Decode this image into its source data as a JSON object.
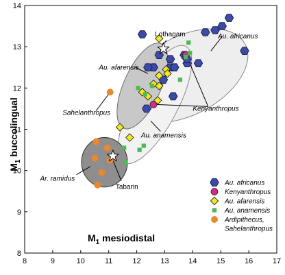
{
  "chart_data": {
    "type": "scatter",
    "xlabel": {
      "main": "M",
      "sub": "1",
      "rest": " mesiodistal"
    },
    "ylabel": {
      "main": "M",
      "sub": "1",
      "rest": " buccolingual"
    },
    "xlim": [
      8,
      17
    ],
    "ylim": [
      8,
      14
    ],
    "xticks": [
      "8",
      "9",
      "10",
      "11",
      "12",
      "13",
      "14",
      "15",
      "16",
      "17"
    ],
    "yticks": [
      "8",
      "9",
      "10",
      "11",
      "12",
      "13",
      "14"
    ],
    "grid": false,
    "legend_position": "bottom-right",
    "series": [
      {
        "name": "Au. africanus",
        "marker": "hexagon",
        "color": "#3b4ba8",
        "points": [
          [
            12.2,
            13.3
          ],
          [
            12.6,
            12.5
          ],
          [
            12.4,
            12.5
          ],
          [
            12.35,
            11.5
          ],
          [
            12.95,
            12.2
          ],
          [
            13.2,
            12.7
          ],
          [
            13.2,
            12.5
          ],
          [
            13.35,
            12.5
          ],
          [
            13.8,
            12.6
          ],
          [
            13.8,
            12.7
          ],
          [
            13.3,
            11.8
          ],
          [
            14.2,
            12.6
          ],
          [
            14.45,
            13.35
          ],
          [
            14.8,
            13.4
          ],
          [
            15.05,
            13.5
          ],
          [
            15.3,
            13.7
          ],
          [
            15.85,
            12.9
          ],
          [
            12.8,
            12.8
          ],
          [
            13.7,
            12.8
          ]
        ]
      },
      {
        "name": "Kenyanthropus",
        "marker": "circle",
        "color": "#d62b8c",
        "points": [
          [
            12.6,
            11.6
          ],
          [
            13.75,
            12.8
          ]
        ]
      },
      {
        "name": "Au. afarensis",
        "marker": "diamond",
        "color": "#f2ea1c",
        "points": [
          [
            12.8,
            13.2
          ],
          [
            12.8,
            12.3
          ],
          [
            13.05,
            12.45
          ],
          [
            13.1,
            12.35
          ],
          [
            12.8,
            12.05
          ],
          [
            12.75,
            11.7
          ],
          [
            12.6,
            12.1
          ],
          [
            12.4,
            11.8
          ],
          [
            12.2,
            11.9
          ],
          [
            11.4,
            11.05
          ],
          [
            11.75,
            10.8
          ]
        ]
      },
      {
        "name": "Au. anamensis",
        "marker": "square",
        "color": "#4dbb55",
        "points": [
          [
            12.05,
            12.0
          ],
          [
            12.3,
            11.85
          ],
          [
            12.55,
            12.05
          ],
          [
            13.55,
            12.2
          ],
          [
            13.85,
            13.1
          ],
          [
            13.9,
            12.85
          ],
          [
            13.75,
            12.75
          ],
          [
            12.1,
            10.5
          ],
          [
            11.55,
            10.55
          ],
          [
            11.6,
            10.2
          ],
          [
            12.25,
            10.6
          ]
        ]
      },
      {
        "name": "Ardipithecus, Sahelanthropus",
        "name_lines": [
          "Ardipithecus,",
          "Sahelanthropus"
        ],
        "marker": "circle",
        "color": "#e8892f",
        "points": [
          [
            11.05,
            11.9
          ],
          [
            10.55,
            10.7
          ],
          [
            10.5,
            10.3
          ],
          [
            10.75,
            9.95
          ],
          [
            11.05,
            10.25
          ],
          [
            10.95,
            10.55
          ],
          [
            10.6,
            9.65
          ]
        ]
      }
    ],
    "ellipses": [
      {
        "group": "Au. africanus",
        "cx": 13.75,
        "cy": 12.3,
        "rx": 2.4,
        "ry": 0.95,
        "angle": 28,
        "fill": "#eeeeee",
        "stroke": "#888888"
      },
      {
        "group": "Au. anamensis",
        "cx": 12.65,
        "cy": 11.6,
        "rx": 2.35,
        "ry": 0.55,
        "angle": 62,
        "fill": "#f2f2f2",
        "stroke": "#8a8a8a"
      },
      {
        "group": "Au. afarensis",
        "cx": 12.2,
        "cy": 12.05,
        "rx": 1.65,
        "ry": 0.45,
        "angle": 66,
        "fill": "#c8c8c8",
        "stroke": "#6a6a6a"
      },
      {
        "group": "Ar. ramidus",
        "cx": 10.85,
        "cy": 10.2,
        "rx": 0.82,
        "ry": 0.6,
        "angle": 0,
        "fill": "#8e8e8e",
        "stroke": "#333333"
      }
    ],
    "stars": [
      {
        "name": "Lothagam",
        "x": 12.95,
        "y": 12.95
      },
      {
        "name": "Tabarin",
        "x": 11.15,
        "y": 10.35
      }
    ],
    "annotations": [
      {
        "text": "Au. africanus",
        "italic": true,
        "x": 14.9,
        "y": 13.2,
        "lx": 15.05,
        "ly": 13.25,
        "px": 14.65,
        "py": 12.9
      },
      {
        "text": "Au. afarensis",
        "italic": true,
        "x": 10.65,
        "y": 12.45,
        "lx": 11.95,
        "ly": 12.5,
        "px": 12.4,
        "py": 12.35
      },
      {
        "text": "Kenyanthropus",
        "italic": true,
        "x": 14.0,
        "y": 11.45,
        "lx": 14.55,
        "ly": 11.55,
        "px": 12.7,
        "py": 11.6
      },
      {
        "text": "Kenyanthropus",
        "italic": true,
        "hidden_label": true,
        "lx": 14.55,
        "ly": 11.55,
        "px": 13.8,
        "py": 12.75
      },
      {
        "text": "Sahelanthropus",
        "italic": true,
        "x": 9.35,
        "y": 11.35,
        "lx": 10.55,
        "ly": 11.45,
        "px": 11.0,
        "py": 11.85
      },
      {
        "text": "Au. anamensis",
        "italic": true,
        "x": 12.15,
        "y": 10.8,
        "lx": 12.85,
        "ly": 10.95,
        "px": 12.5,
        "py": 11.2
      },
      {
        "text": "Ar. ramidus",
        "italic": true,
        "x": 8.55,
        "y": 9.75,
        "lx": 9.85,
        "ly": 9.9,
        "px": 10.35,
        "py": 10.1
      },
      {
        "text": "Tabarin",
        "italic": false,
        "x": 11.25,
        "y": 9.55,
        "lx": 11.45,
        "ly": 9.75,
        "px": 11.15,
        "py": 10.25
      },
      {
        "text": "Lothagam",
        "italic": false,
        "x": 12.65,
        "y": 13.25,
        "lx": 13.05,
        "ly": 13.15,
        "px": 12.95,
        "py": 13.05
      }
    ]
  }
}
